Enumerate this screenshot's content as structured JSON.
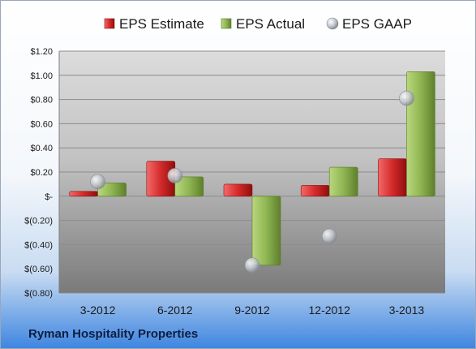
{
  "company": "Ryman Hospitality Properties",
  "legend_position": "top",
  "colors": {
    "estimate": "#d22d2d",
    "actual": "#8fb552",
    "gaap": "#b8bcc4"
  },
  "chart_data": {
    "type": "bar",
    "categories": [
      "3-2012",
      "6-2012",
      "9-2012",
      "12-2012",
      "3-2013"
    ],
    "series": [
      {
        "name": "EPS Estimate",
        "kind": "bar",
        "values": [
          0.04,
          0.29,
          0.1,
          0.09,
          0.31
        ]
      },
      {
        "name": "EPS Actual",
        "kind": "bar",
        "values": [
          0.11,
          0.16,
          -0.57,
          0.24,
          1.03
        ]
      },
      {
        "name": "EPS GAAP",
        "kind": "marker",
        "values": [
          0.12,
          0.17,
          -0.57,
          -0.33,
          0.81
        ]
      }
    ],
    "ylim": [
      -0.8,
      1.2
    ],
    "yticks": [
      1.2,
      1.0,
      0.8,
      0.6,
      0.4,
      0.2,
      0,
      -0.2,
      -0.4,
      -0.6,
      -0.8
    ],
    "ytick_labels": [
      "$1.20",
      "$1.00",
      "$0.80",
      "$0.60",
      "$0.40",
      "$0.20",
      "$-",
      "$(0.20)",
      "$(0.40)",
      "$(0.60)",
      "$(0.80)"
    ],
    "grid": true,
    "title": "",
    "xlabel": "",
    "ylabel": ""
  }
}
